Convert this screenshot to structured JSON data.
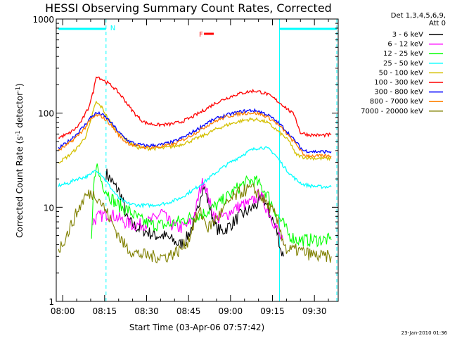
{
  "chart_data": {
    "type": "line",
    "title": "HESSI Observing Summary Count Rates, Corrected",
    "xlabel": "Start Time (03-Apr-06 07:57:42)",
    "ylabel": "Corrected Count Rate (s",
    "ylabel_sup1": "-1",
    "ylabel_mid": " detector",
    "ylabel_sup2": "-1",
    "ylabel_end": ")",
    "yscale": "log",
    "ylim": [
      1,
      1000
    ],
    "xlim_minutes": [
      -2.3,
      98.5
    ],
    "x_tick_labels": [
      "08:00",
      "08:15",
      "08:30",
      "08:45",
      "09:00",
      "09:15",
      "09:30"
    ],
    "y_tick_labels": [
      "1",
      "10",
      "100",
      "1000"
    ],
    "legend_header": [
      "Det 1,3,4,5,6,9,",
      "Att 0"
    ],
    "timestamp": "23-Jan-2010 01:36",
    "flag_night": "N",
    "flag_flare": "F",
    "night_intervals_minutes": [
      [
        -1.5,
        15.5
      ],
      [
        77.5,
        98.0
      ]
    ],
    "flare_interval_minutes": [
      50.5,
      54.0
    ],
    "series": [
      {
        "name": "3 - 6 keV",
        "color": "#000000",
        "points": [
          [
            15.5,
            23
          ],
          [
            17,
            20
          ],
          [
            18.5,
            17
          ],
          [
            20,
            15
          ],
          [
            21,
            13
          ],
          [
            22,
            10
          ],
          [
            23,
            7.5
          ],
          [
            25,
            6.5
          ],
          [
            27,
            6
          ],
          [
            30,
            5.5
          ],
          [
            33,
            5
          ],
          [
            36,
            5
          ],
          [
            39,
            4.5
          ],
          [
            42,
            4
          ],
          [
            44,
            4.5
          ],
          [
            46,
            6
          ],
          [
            48,
            8.5
          ],
          [
            49.5,
            15
          ],
          [
            50.5,
            17
          ],
          [
            51.5,
            13
          ],
          [
            53,
            9
          ],
          [
            55,
            6
          ],
          [
            57,
            5.5
          ],
          [
            60,
            6.5
          ],
          [
            63,
            8
          ],
          [
            66,
            9
          ],
          [
            68,
            10
          ],
          [
            70,
            11
          ],
          [
            71.5,
            13
          ],
          [
            73,
            10
          ],
          [
            75,
            7.5
          ],
          [
            77,
            5
          ],
          [
            78,
            3.5
          ],
          [
            79,
            3
          ]
        ]
      },
      {
        "name": "6 - 12 keV",
        "color": "#ff00ff",
        "points": [
          [
            10.5,
            7
          ],
          [
            13,
            8
          ],
          [
            16,
            8.5
          ],
          [
            19,
            8
          ],
          [
            22,
            7
          ],
          [
            25,
            6.5
          ],
          [
            28,
            6.5
          ],
          [
            31,
            7
          ],
          [
            34,
            8
          ],
          [
            35.5,
            9
          ],
          [
            37,
            7.5
          ],
          [
            39,
            6.5
          ],
          [
            42,
            6
          ],
          [
            45,
            6.5
          ],
          [
            47.5,
            9
          ],
          [
            49,
            15
          ],
          [
            50.5,
            20
          ],
          [
            51.5,
            15
          ],
          [
            53,
            10
          ],
          [
            55,
            7.5
          ],
          [
            58,
            8
          ],
          [
            61,
            9.5
          ],
          [
            64,
            10.5
          ],
          [
            67,
            11
          ],
          [
            69,
            12.5
          ],
          [
            70.5,
            14
          ],
          [
            72,
            11
          ],
          [
            74,
            8.5
          ],
          [
            76,
            6.5
          ],
          [
            77.5,
            5
          ],
          [
            79,
            4
          ]
        ]
      },
      {
        "name": "12 - 25 keV",
        "color": "#00ff00",
        "points": [
          [
            10.3,
            4
          ],
          [
            11,
            15
          ],
          [
            12,
            30
          ],
          [
            13,
            22
          ],
          [
            15,
            16
          ],
          [
            17,
            13
          ],
          [
            19,
            11
          ],
          [
            21,
            10
          ],
          [
            23,
            9.5
          ],
          [
            26,
            8
          ],
          [
            29,
            7
          ],
          [
            32,
            6.5
          ],
          [
            35,
            6.5
          ],
          [
            38,
            6.5
          ],
          [
            41,
            7
          ],
          [
            44,
            7.5
          ],
          [
            47,
            8
          ],
          [
            50,
            8.5
          ],
          [
            53,
            9.5
          ],
          [
            56,
            11
          ],
          [
            59,
            13
          ],
          [
            62,
            15.5
          ],
          [
            65,
            18
          ],
          [
            67,
            19
          ],
          [
            69,
            19
          ],
          [
            71,
            16.5
          ],
          [
            73,
            14
          ],
          [
            75,
            10.5
          ],
          [
            77,
            8
          ],
          [
            79,
            6.5
          ],
          [
            81,
            5
          ],
          [
            84,
            4.5
          ],
          [
            88,
            4.5
          ],
          [
            92,
            4.5
          ],
          [
            96,
            4.5
          ]
        ]
      },
      {
        "name": "25 - 50 keV",
        "color": "#00ffff",
        "points": [
          [
            -1.5,
            17
          ],
          [
            2,
            18
          ],
          [
            5,
            20
          ],
          [
            8,
            21
          ],
          [
            10,
            22
          ],
          [
            11,
            24
          ],
          [
            12,
            25
          ],
          [
            14,
            22
          ],
          [
            16,
            18
          ],
          [
            18,
            15
          ],
          [
            20,
            12.5
          ],
          [
            23,
            11
          ],
          [
            27,
            10.5
          ],
          [
            32,
            10.5
          ],
          [
            37,
            11
          ],
          [
            42,
            12.5
          ],
          [
            47,
            15.5
          ],
          [
            52,
            20
          ],
          [
            56,
            25
          ],
          [
            60,
            30
          ],
          [
            64,
            35.5
          ],
          [
            67,
            40
          ],
          [
            70,
            43
          ],
          [
            72,
            43
          ],
          [
            74,
            41
          ],
          [
            76,
            36
          ],
          [
            78,
            30
          ],
          [
            80,
            25
          ],
          [
            82,
            21.5
          ],
          [
            84,
            19
          ],
          [
            86,
            17.5
          ],
          [
            88,
            17
          ],
          [
            92,
            16.5
          ],
          [
            96,
            16.5
          ]
        ]
      },
      {
        "name": "50 - 100 keV",
        "color": "#d4c000",
        "points": [
          [
            -1.5,
            30
          ],
          [
            2,
            35
          ],
          [
            5,
            42
          ],
          [
            8,
            55
          ],
          [
            10,
            80
          ],
          [
            11,
            110
          ],
          [
            12,
            130
          ],
          [
            14,
            115
          ],
          [
            16,
            90
          ],
          [
            18,
            72
          ],
          [
            20,
            62
          ],
          [
            22,
            55
          ],
          [
            24,
            48
          ],
          [
            27,
            43
          ],
          [
            31,
            42
          ],
          [
            36,
            42.5
          ],
          [
            41,
            45
          ],
          [
            46,
            51
          ],
          [
            51,
            59
          ],
          [
            55,
            68
          ],
          [
            60,
            77
          ],
          [
            64,
            83
          ],
          [
            67,
            86
          ],
          [
            70,
            85
          ],
          [
            73,
            80
          ],
          [
            76,
            68
          ],
          [
            79,
            57
          ],
          [
            81,
            50
          ],
          [
            82,
            45
          ],
          [
            83,
            37
          ],
          [
            86,
            34
          ],
          [
            91,
            33
          ],
          [
            96,
            33
          ]
        ]
      },
      {
        "name": "100 - 300 keV",
        "color": "#ff0000",
        "points": [
          [
            -1.5,
            55
          ],
          [
            2,
            60
          ],
          [
            5,
            70
          ],
          [
            7,
            85
          ],
          [
            9,
            110
          ],
          [
            11,
            170
          ],
          [
            12,
            250
          ],
          [
            14,
            230
          ],
          [
            16,
            210
          ],
          [
            18,
            190
          ],
          [
            20,
            165
          ],
          [
            22,
            140
          ],
          [
            24,
            115
          ],
          [
            26,
            97
          ],
          [
            28,
            85
          ],
          [
            30,
            78
          ],
          [
            34,
            75
          ],
          [
            38,
            76
          ],
          [
            42,
            80
          ],
          [
            46,
            90
          ],
          [
            50,
            105
          ],
          [
            54,
            125
          ],
          [
            58,
            142
          ],
          [
            62,
            158
          ],
          [
            66,
            168
          ],
          [
            68,
            172
          ],
          [
            70,
            170
          ],
          [
            73,
            160
          ],
          [
            76,
            140
          ],
          [
            79,
            120
          ],
          [
            82,
            100
          ],
          [
            83,
            95
          ],
          [
            84,
            75
          ],
          [
            85,
            62
          ],
          [
            88,
            59
          ],
          [
            92,
            58
          ],
          [
            96,
            59
          ]
        ]
      },
      {
        "name": "300 - 800 keV",
        "color": "#0000ff",
        "points": [
          [
            -1.5,
            42
          ],
          [
            2,
            50
          ],
          [
            5,
            60
          ],
          [
            8,
            75
          ],
          [
            10,
            90
          ],
          [
            12,
            100
          ],
          [
            14,
            97
          ],
          [
            16,
            87
          ],
          [
            18,
            75
          ],
          [
            20,
            63
          ],
          [
            22,
            55
          ],
          [
            24,
            50
          ],
          [
            26,
            47
          ],
          [
            30,
            45
          ],
          [
            35,
            46
          ],
          [
            40,
            50
          ],
          [
            44,
            57
          ],
          [
            48,
            67
          ],
          [
            52,
            80
          ],
          [
            56,
            90
          ],
          [
            60,
            98
          ],
          [
            64,
            104
          ],
          [
            67,
            107
          ],
          [
            70,
            105
          ],
          [
            73,
            97
          ],
          [
            76,
            84
          ],
          [
            79,
            70
          ],
          [
            82,
            55
          ],
          [
            84,
            47
          ],
          [
            86,
            40
          ],
          [
            90,
            39
          ],
          [
            96,
            39
          ]
        ]
      },
      {
        "name": "800 - 7000 keV",
        "color": "#ff8000",
        "points": [
          [
            -1.5,
            40
          ],
          [
            2,
            47
          ],
          [
            5,
            56
          ],
          [
            8,
            70
          ],
          [
            10,
            85
          ],
          [
            12,
            95
          ],
          [
            14,
            92
          ],
          [
            16,
            82
          ],
          [
            18,
            70
          ],
          [
            20,
            59
          ],
          [
            22,
            51
          ],
          [
            24,
            47
          ],
          [
            26,
            45
          ],
          [
            30,
            43
          ],
          [
            35,
            44
          ],
          [
            40,
            47
          ],
          [
            44,
            54
          ],
          [
            48,
            63
          ],
          [
            52,
            75
          ],
          [
            56,
            86
          ],
          [
            60,
            94
          ],
          [
            64,
            99
          ],
          [
            67,
            101
          ],
          [
            70,
            99
          ],
          [
            73,
            92
          ],
          [
            76,
            80
          ],
          [
            79,
            66
          ],
          [
            82,
            52
          ],
          [
            84,
            45
          ],
          [
            86,
            36
          ],
          [
            90,
            35
          ],
          [
            96,
            35
          ]
        ]
      },
      {
        "name": "7000 - 20000 keV",
        "color": "#808000",
        "points": [
          [
            -1.5,
            3.5
          ],
          [
            0,
            4.2
          ],
          [
            2,
            5.5
          ],
          [
            4,
            7.5
          ],
          [
            6,
            10
          ],
          [
            8,
            13
          ],
          [
            10,
            14
          ],
          [
            12,
            13.5
          ],
          [
            14,
            11
          ],
          [
            16,
            8.5
          ],
          [
            18,
            6.5
          ],
          [
            20,
            5
          ],
          [
            22,
            4
          ],
          [
            24,
            3.5
          ],
          [
            27,
            3.2
          ],
          [
            32,
            3
          ],
          [
            37,
            3
          ],
          [
            42,
            3.5
          ],
          [
            45,
            4.5
          ],
          [
            47,
            7
          ],
          [
            49,
            9
          ],
          [
            50,
            8
          ],
          [
            52,
            6
          ],
          [
            54,
            7
          ],
          [
            57,
            9
          ],
          [
            60,
            12
          ],
          [
            63,
            14
          ],
          [
            66,
            15.5
          ],
          [
            68,
            15.5
          ],
          [
            70,
            14
          ],
          [
            72,
            12
          ],
          [
            74,
            10
          ],
          [
            76,
            8
          ],
          [
            78,
            5.5
          ],
          [
            80,
            3.5
          ],
          [
            84,
            3.5
          ],
          [
            88,
            3.2
          ],
          [
            92,
            3
          ],
          [
            96,
            3
          ]
        ]
      }
    ]
  }
}
